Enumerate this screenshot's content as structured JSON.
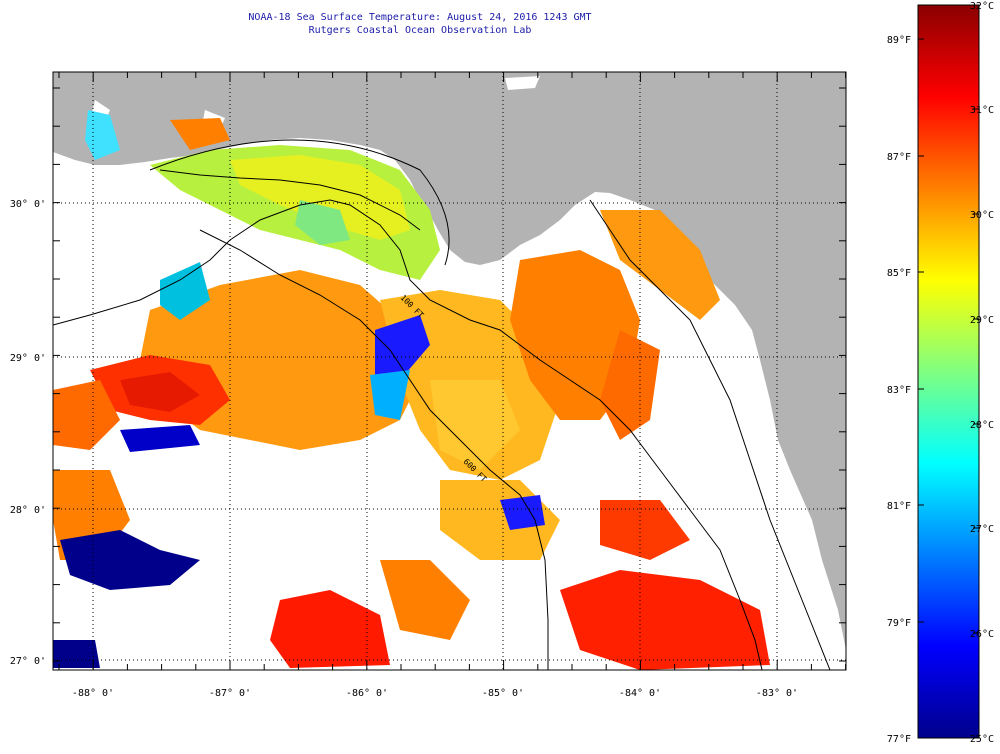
{
  "header": {
    "title": "NOAA-18 Sea Surface Temperature:  August 24, 2016 1243 GMT",
    "subtitle": "Rutgers Coastal Ocean Observation Lab"
  },
  "map": {
    "lon_labels": [
      "-88° 0'",
      "-87° 0'",
      "-86° 0'",
      "-85° 0'",
      "-84° 0'",
      "-83° 0'"
    ],
    "lat_labels": [
      "30° 0'",
      "29° 0'",
      "28° 0'",
      "27° 0'"
    ],
    "contour_labels": [
      "100 FT",
      "600 FT"
    ],
    "colors": {
      "land": "#b3b3b3",
      "no_data": "#ffffff",
      "grid": "#000000",
      "title": "#1c1ca8"
    }
  },
  "colorbar": {
    "celsius_labels": [
      "32°C",
      "31°C",
      "30°C",
      "29°C",
      "28°C",
      "27°C",
      "26°C",
      "25°C"
    ],
    "fahrenheit_labels": [
      "89°F",
      "87°F",
      "85°F",
      "83°F",
      "81°F",
      "79°F",
      "77°F"
    ],
    "range_c": [
      25,
      32
    ],
    "range_f": [
      77,
      89.6
    ],
    "stops": [
      "#00008b",
      "#0000ff",
      "#0080ff",
      "#00ffff",
      "#80ff80",
      "#ffff00",
      "#ff8000",
      "#ff0000",
      "#8b0000"
    ]
  }
}
